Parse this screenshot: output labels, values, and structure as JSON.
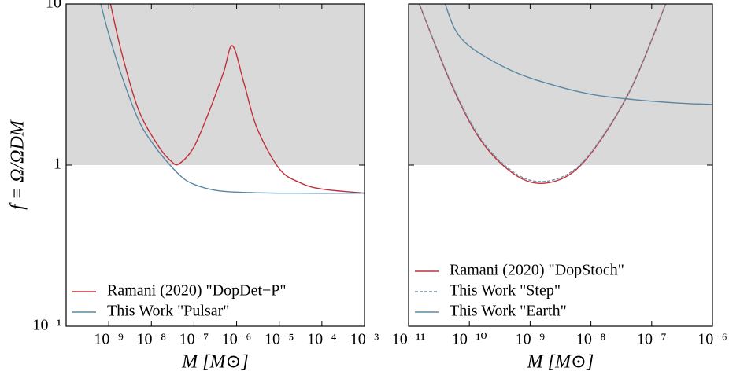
{
  "chart_data": [
    {
      "type": "line",
      "xlabel": "M [M⊙]",
      "ylabel": "f ≡ Ω/ΩDM",
      "xscale": "log",
      "yscale": "log",
      "xlim": [
        1e-10,
        0.001
      ],
      "ylim": [
        0.1,
        10
      ],
      "xticks": [
        {
          "value": 1e-09,
          "label": "10⁻⁹"
        },
        {
          "value": 1e-08,
          "label": "10⁻⁸"
        },
        {
          "value": 1e-07,
          "label": "10⁻⁷"
        },
        {
          "value": 1e-06,
          "label": "10⁻⁶"
        },
        {
          "value": 1e-05,
          "label": "10⁻⁵"
        },
        {
          "value": 0.0001,
          "label": "10⁻⁴"
        },
        {
          "value": 0.001,
          "label": "10⁻³"
        }
      ],
      "yticks": [
        {
          "value": 0.1,
          "label": "10⁻¹"
        },
        1,
        10
      ],
      "shaded_region": [
        1,
        10
      ],
      "shade_color": "#d9d9d9",
      "legend": "lower left",
      "series": [
        {
          "name": "Ramani (2020) \"DopDet−P\"",
          "color": "#c0303b",
          "dash": false,
          "x": [
            1.1e-09,
            2e-09,
            5e-09,
            1.5e-08,
            3e-08,
            4.5e-08,
            1e-07,
            2.5e-07,
            5e-07,
            8e-07,
            1.5e-06,
            3e-06,
            1e-05,
            3e-05,
            0.0001,
            0.001
          ],
          "values": [
            10,
            5,
            2.2,
            1.3,
            1.05,
            1.02,
            1.3,
            2.3,
            3.8,
            5.5,
            3.2,
            1.7,
            0.95,
            0.78,
            0.71,
            0.67
          ]
        },
        {
          "name": "This Work \"Pulsar\"",
          "color": "#5a87a3",
          "dash": false,
          "x": [
            6.5e-10,
            1e-09,
            2e-09,
            5e-09,
            1e-08,
            2e-08,
            5e-08,
            1e-07,
            3e-07,
            1e-06,
            1e-05,
            0.001
          ],
          "values": [
            10,
            6.5,
            3.6,
            1.9,
            1.4,
            1.1,
            0.85,
            0.76,
            0.7,
            0.68,
            0.67,
            0.67
          ]
        }
      ]
    },
    {
      "type": "line",
      "xlabel": "M [M⊙]",
      "xscale": "log",
      "yscale": "log",
      "xlim": [
        1e-11,
        1e-06
      ],
      "ylim": [
        0.1,
        10
      ],
      "xticks": [
        {
          "value": 1e-11,
          "label": "10⁻¹¹"
        },
        {
          "value": 1e-10,
          "label": "10⁻¹⁰"
        },
        {
          "value": 1e-09,
          "label": "10⁻⁹"
        },
        {
          "value": 1e-08,
          "label": "10⁻⁸"
        },
        {
          "value": 1e-07,
          "label": "10⁻⁷"
        },
        {
          "value": 1e-06,
          "label": "10⁻⁶"
        }
      ],
      "yticks": [
        0.1,
        1,
        10
      ],
      "shaded_region": [
        1,
        10
      ],
      "shade_color": "#d9d9d9",
      "legend": "lower left",
      "series": [
        {
          "name": "Ramani (2020) \"DopStoch\"",
          "color": "#c0303b",
          "dash": false,
          "x": [
            1.5e-11,
            5e-11,
            1.5e-10,
            5e-10,
            1.5e-09,
            5e-09,
            1.5e-08,
            5e-08,
            1.7e-07
          ],
          "values": [
            10,
            3.2,
            1.45,
            0.9,
            0.77,
            0.9,
            1.46,
            3.2,
            10
          ]
        },
        {
          "name": "This Work \"Step\"",
          "color": "#7592a8",
          "dash": true,
          "x": [
            1.5e-11,
            5e-11,
            1.5e-10,
            5e-10,
            1.5e-09,
            5e-09,
            1.5e-08,
            5e-08,
            1.7e-07
          ],
          "values": [
            10,
            3.25,
            1.48,
            0.92,
            0.79,
            0.92,
            1.48,
            3.22,
            10
          ]
        },
        {
          "name": "This Work \"Earth\"",
          "color": "#5a87a3",
          "dash": false,
          "x": [
            4e-11,
            6e-11,
            1.2e-10,
            5e-10,
            2e-09,
            1e-08,
            5e-08,
            3e-07,
            1e-06
          ],
          "values": [
            10,
            6.8,
            5.2,
            3.85,
            3.2,
            2.75,
            2.55,
            2.42,
            2.38
          ]
        }
      ]
    }
  ]
}
